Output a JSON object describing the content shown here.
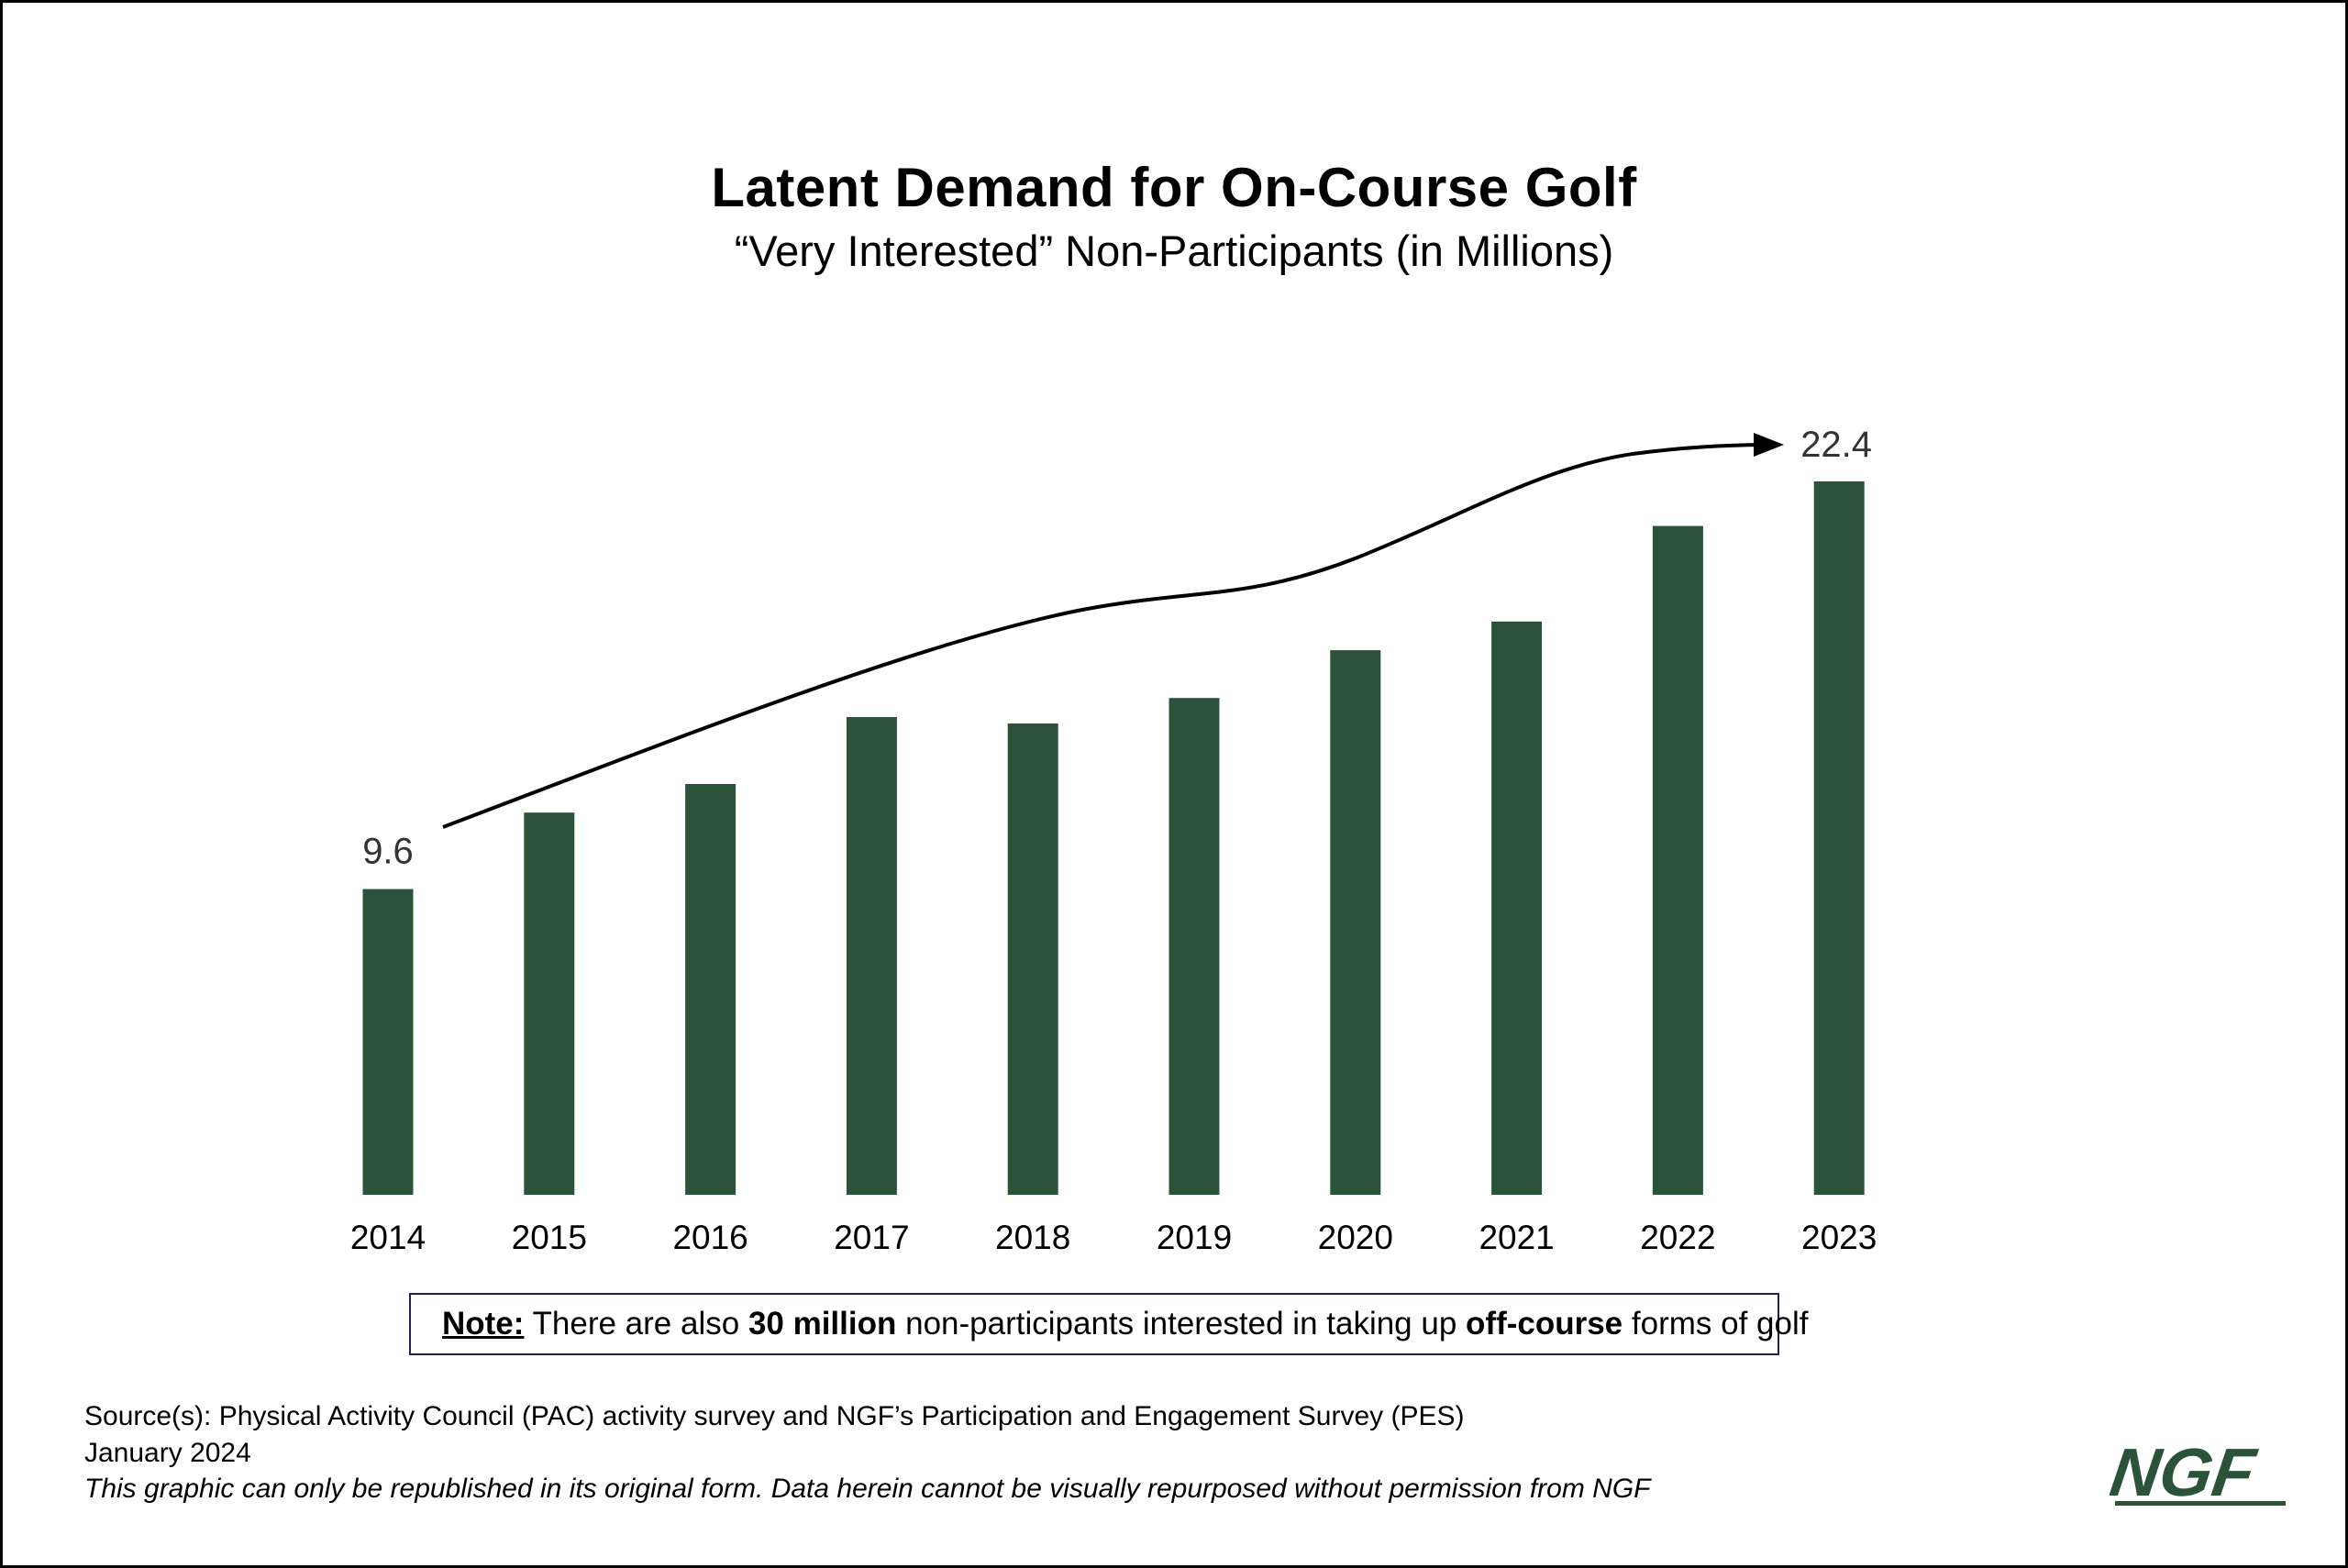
{
  "header": {
    "title": "Latent Demand for On-Course Golf",
    "subtitle": "“Very Interested” Non-Participants (in Millions)"
  },
  "chart_data": {
    "type": "bar",
    "title": "Latent Demand for On-Course Golf",
    "subtitle": "“Very Interested” Non-Participants (in Millions)",
    "xlabel": "",
    "ylabel": "",
    "categories": [
      "2014",
      "2015",
      "2016",
      "2017",
      "2018",
      "2019",
      "2020",
      "2021",
      "2022",
      "2023"
    ],
    "values": [
      9.6,
      12.0,
      12.9,
      15.0,
      14.8,
      15.6,
      17.1,
      18.0,
      21.0,
      22.4
    ],
    "data_labels": [
      {
        "index": 0,
        "text": "9.6"
      },
      {
        "index": 9,
        "text": "22.4"
      }
    ],
    "ylim": [
      0,
      22.4
    ],
    "grid": false,
    "legend": "none",
    "bar_color": "#2b5339",
    "annotation": "trend arrow from 2014 to 2023"
  },
  "note": {
    "label": "Note:",
    "text_1": " There are also ",
    "bold_1": "30 million",
    "text_2": " non-participants interested in taking up ",
    "bold_2": "off-course",
    "text_3": " forms of golf"
  },
  "footer": {
    "source": "Source(s): Physical Activity Council (PAC) activity survey and NGF’s Participation and Engagement Survey (PES)",
    "date": "January 2024",
    "disclaimer": "This graphic can only be republished in its original form. Data herein cannot be visually repurposed without permission from NGF"
  },
  "logo": {
    "text": "NGF",
    "color": "#2b5339"
  }
}
